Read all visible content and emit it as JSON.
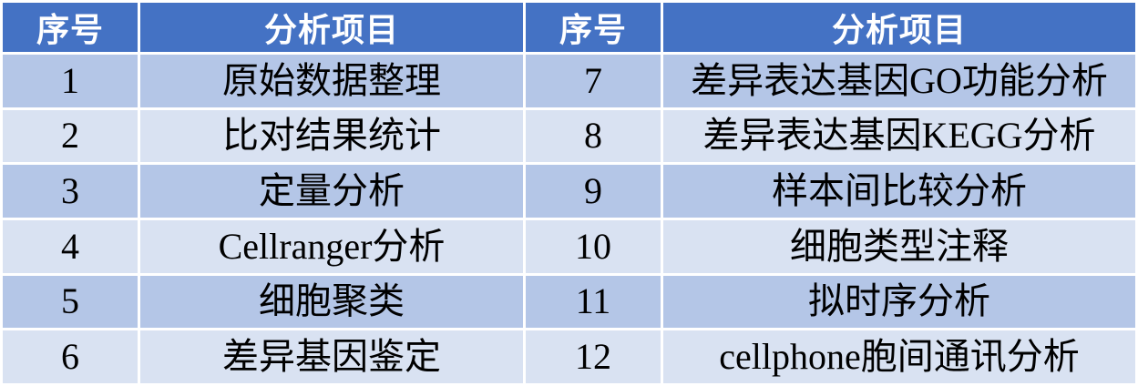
{
  "table": {
    "headers": [
      {
        "label": "序号"
      },
      {
        "label": "分析项目"
      },
      {
        "label": "序号"
      },
      {
        "label": "分析项目"
      }
    ],
    "rows": [
      {
        "no_left": "1",
        "item_left": "原始数据整理",
        "no_right": "7",
        "item_right": "差异表达基因GO功能分析"
      },
      {
        "no_left": "2",
        "item_left": "比对结果统计",
        "no_right": "8",
        "item_right": "差异表达基因KEGG分析"
      },
      {
        "no_left": "3",
        "item_left": "定量分析",
        "no_right": "9",
        "item_right": "样本间比较分析"
      },
      {
        "no_left": "4",
        "item_left": "Cellranger分析",
        "no_right": "10",
        "item_right": "细胞类型注释"
      },
      {
        "no_left": "5",
        "item_left": "细胞聚类",
        "no_right": "11",
        "item_right": "拟时序分析"
      },
      {
        "no_left": "6",
        "item_left": "差异基因鉴定",
        "no_right": "12",
        "item_right": "cellphone胞间通讯分析"
      }
    ],
    "colors": {
      "header_bg": "#4472C4",
      "header_text": "#FFFFFF",
      "band_dark": "#B4C6E7",
      "band_light": "#D9E2F2",
      "gridline": "#FFFFFF",
      "body_text": "#000000"
    }
  }
}
